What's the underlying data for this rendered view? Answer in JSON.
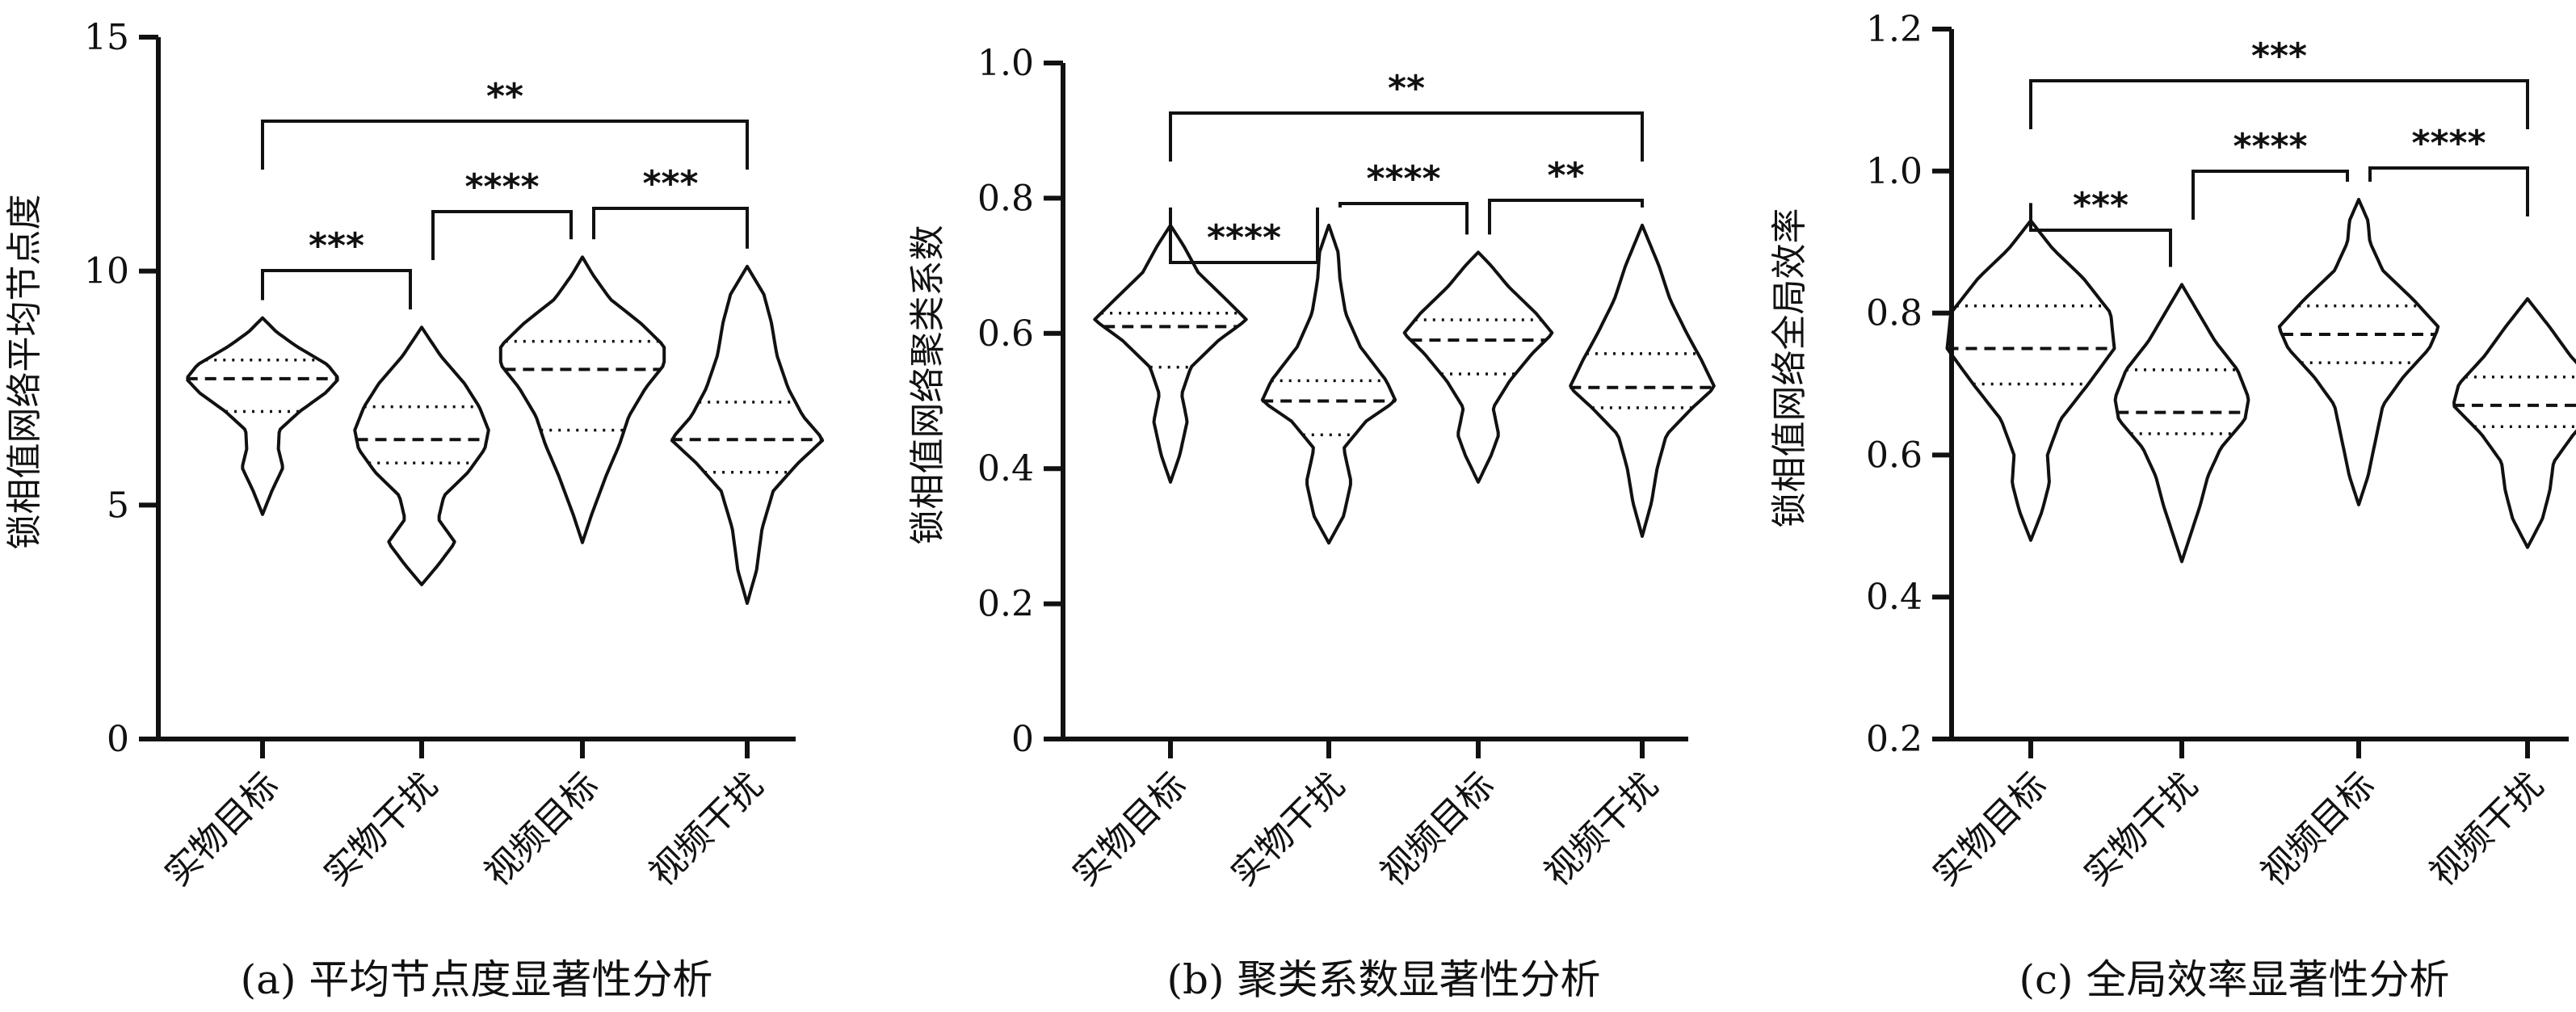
{
  "chart_data": [
    {
      "type": "violin",
      "caption": "(a) 平均节点度显著性分析",
      "ylabel": "锁相值网络平均节点度",
      "ylim": [
        0,
        15
      ],
      "yticks": [
        "0",
        "5",
        "10",
        "15"
      ],
      "categories": [
        "实物目标",
        "实物干扰",
        "视频目标",
        "视频干扰"
      ],
      "violins": [
        {
          "min": 4.8,
          "max": 9.0,
          "median": 7.7,
          "q1": 7.0,
          "q3": 8.1,
          "profile": [
            [
              4.8,
              0.0
            ],
            [
              5.3,
              0.1
            ],
            [
              5.8,
              0.22
            ],
            [
              6.2,
              0.17
            ],
            [
              6.6,
              0.18
            ],
            [
              7.0,
              0.4
            ],
            [
              7.4,
              0.68
            ],
            [
              7.7,
              0.82
            ],
            [
              8.0,
              0.7
            ],
            [
              8.4,
              0.36
            ],
            [
              8.7,
              0.15
            ],
            [
              9.0,
              0.0
            ]
          ]
        },
        {
          "min": 3.3,
          "max": 8.8,
          "median": 6.4,
          "q1": 5.9,
          "q3": 7.1,
          "profile": [
            [
              3.3,
              0.0
            ],
            [
              3.7,
              0.17
            ],
            [
              4.2,
              0.36
            ],
            [
              4.7,
              0.18
            ],
            [
              5.2,
              0.24
            ],
            [
              5.7,
              0.5
            ],
            [
              6.2,
              0.68
            ],
            [
              6.6,
              0.72
            ],
            [
              7.1,
              0.62
            ],
            [
              7.6,
              0.46
            ],
            [
              8.2,
              0.2
            ],
            [
              8.8,
              0.0
            ]
          ]
        },
        {
          "min": 4.2,
          "max": 10.3,
          "median": 7.9,
          "q1": 6.6,
          "q3": 8.5,
          "profile": [
            [
              4.2,
              0.0
            ],
            [
              4.8,
              0.1
            ],
            [
              5.6,
              0.25
            ],
            [
              6.3,
              0.4
            ],
            [
              6.9,
              0.5
            ],
            [
              7.5,
              0.68
            ],
            [
              8.0,
              0.88
            ],
            [
              8.4,
              0.88
            ],
            [
              8.9,
              0.62
            ],
            [
              9.4,
              0.3
            ],
            [
              9.9,
              0.12
            ],
            [
              10.3,
              0.0
            ]
          ]
        },
        {
          "min": 2.9,
          "max": 10.1,
          "median": 6.4,
          "q1": 5.7,
          "q3": 7.2,
          "profile": [
            [
              2.9,
              0.0
            ],
            [
              3.6,
              0.1
            ],
            [
              4.5,
              0.16
            ],
            [
              5.3,
              0.28
            ],
            [
              5.9,
              0.55
            ],
            [
              6.4,
              0.82
            ],
            [
              6.9,
              0.6
            ],
            [
              7.5,
              0.44
            ],
            [
              8.2,
              0.32
            ],
            [
              8.9,
              0.26
            ],
            [
              9.5,
              0.18
            ],
            [
              10.1,
              0.0
            ]
          ]
        }
      ],
      "brackets": [
        {
          "from": 0,
          "to": 1,
          "label": "***"
        },
        {
          "from": 1,
          "to": 2,
          "label": "****"
        },
        {
          "from": 2,
          "to": 3,
          "label": "***"
        },
        {
          "from": 0,
          "to": 3,
          "label": "**"
        }
      ]
    },
    {
      "type": "violin",
      "caption": "(b) 聚类系数显著性分析",
      "ylabel": "锁相值网络聚类系数",
      "ylim": [
        0,
        1.0
      ],
      "yticks": [
        "0",
        "0.2",
        "0.4",
        "0.6",
        "0.8",
        "1.0"
      ],
      "categories": [
        "实物目标",
        "实物干扰",
        "视频目标",
        "视频干扰"
      ],
      "violins": [
        {
          "min": 0.38,
          "max": 0.76,
          "median": 0.61,
          "q1": 0.55,
          "q3": 0.63,
          "profile": [
            [
              0.38,
              0.0
            ],
            [
              0.42,
              0.1
            ],
            [
              0.47,
              0.18
            ],
            [
              0.51,
              0.12
            ],
            [
              0.55,
              0.22
            ],
            [
              0.59,
              0.52
            ],
            [
              0.62,
              0.82
            ],
            [
              0.65,
              0.6
            ],
            [
              0.69,
              0.3
            ],
            [
              0.73,
              0.14
            ],
            [
              0.76,
              0.0
            ]
          ]
        },
        {
          "min": 0.29,
          "max": 0.76,
          "median": 0.5,
          "q1": 0.45,
          "q3": 0.53,
          "profile": [
            [
              0.29,
              0.0
            ],
            [
              0.33,
              0.16
            ],
            [
              0.38,
              0.24
            ],
            [
              0.43,
              0.16
            ],
            [
              0.47,
              0.4
            ],
            [
              0.5,
              0.72
            ],
            [
              0.53,
              0.62
            ],
            [
              0.58,
              0.34
            ],
            [
              0.63,
              0.18
            ],
            [
              0.68,
              0.12
            ],
            [
              0.72,
              0.1
            ],
            [
              0.76,
              0.0
            ]
          ]
        },
        {
          "min": 0.38,
          "max": 0.72,
          "median": 0.59,
          "q1": 0.54,
          "q3": 0.62,
          "profile": [
            [
              0.38,
              0.0
            ],
            [
              0.42,
              0.14
            ],
            [
              0.45,
              0.22
            ],
            [
              0.49,
              0.16
            ],
            [
              0.53,
              0.34
            ],
            [
              0.57,
              0.58
            ],
            [
              0.6,
              0.8
            ],
            [
              0.63,
              0.62
            ],
            [
              0.67,
              0.32
            ],
            [
              0.7,
              0.14
            ],
            [
              0.72,
              0.0
            ]
          ]
        },
        {
          "min": 0.3,
          "max": 0.76,
          "median": 0.52,
          "q1": 0.49,
          "q3": 0.57,
          "profile": [
            [
              0.3,
              0.0
            ],
            [
              0.35,
              0.1
            ],
            [
              0.4,
              0.16
            ],
            [
              0.45,
              0.26
            ],
            [
              0.49,
              0.54
            ],
            [
              0.52,
              0.78
            ],
            [
              0.56,
              0.64
            ],
            [
              0.6,
              0.48
            ],
            [
              0.65,
              0.3
            ],
            [
              0.7,
              0.18
            ],
            [
              0.76,
              0.0
            ]
          ]
        }
      ],
      "brackets": [
        {
          "from": 0,
          "to": 1,
          "label": "****"
        },
        {
          "from": 1,
          "to": 2,
          "label": "****"
        },
        {
          "from": 2,
          "to": 3,
          "label": "**"
        },
        {
          "from": 0,
          "to": 3,
          "label": "**"
        }
      ]
    },
    {
      "type": "violin",
      "caption": "(c) 全局效率显著性分析",
      "ylabel": "锁相值网络全局效率",
      "ylim": [
        0.2,
        1.2
      ],
      "yticks": [
        "0.2",
        "0.4",
        "0.6",
        "0.8",
        "1.0",
        "1.2"
      ],
      "categories": [
        "实物目标",
        "实物干扰",
        "视频目标",
        "视频干扰"
      ],
      "violins": [
        {
          "min": 0.48,
          "max": 0.93,
          "median": 0.75,
          "q1": 0.7,
          "q3": 0.81,
          "profile": [
            [
              0.48,
              0.0
            ],
            [
              0.52,
              0.12
            ],
            [
              0.56,
              0.2
            ],
            [
              0.6,
              0.18
            ],
            [
              0.65,
              0.32
            ],
            [
              0.7,
              0.62
            ],
            [
              0.75,
              0.9
            ],
            [
              0.8,
              0.86
            ],
            [
              0.85,
              0.56
            ],
            [
              0.89,
              0.24
            ],
            [
              0.93,
              0.0
            ]
          ]
        },
        {
          "min": 0.45,
          "max": 0.84,
          "median": 0.66,
          "q1": 0.63,
          "q3": 0.72,
          "profile": [
            [
              0.45,
              0.0
            ],
            [
              0.49,
              0.1
            ],
            [
              0.53,
              0.2
            ],
            [
              0.57,
              0.28
            ],
            [
              0.61,
              0.42
            ],
            [
              0.65,
              0.68
            ],
            [
              0.68,
              0.72
            ],
            [
              0.72,
              0.6
            ],
            [
              0.76,
              0.36
            ],
            [
              0.8,
              0.18
            ],
            [
              0.84,
              0.0
            ]
          ]
        },
        {
          "min": 0.53,
          "max": 0.96,
          "median": 0.77,
          "q1": 0.73,
          "q3": 0.81,
          "profile": [
            [
              0.53,
              0.0
            ],
            [
              0.57,
              0.1
            ],
            [
              0.62,
              0.18
            ],
            [
              0.67,
              0.26
            ],
            [
              0.71,
              0.48
            ],
            [
              0.75,
              0.76
            ],
            [
              0.78,
              0.86
            ],
            [
              0.82,
              0.58
            ],
            [
              0.86,
              0.26
            ],
            [
              0.9,
              0.12
            ],
            [
              0.93,
              0.1
            ],
            [
              0.96,
              0.0
            ]
          ]
        },
        {
          "min": 0.47,
          "max": 0.82,
          "median": 0.67,
          "q1": 0.64,
          "q3": 0.71,
          "profile": [
            [
              0.47,
              0.0
            ],
            [
              0.51,
              0.16
            ],
            [
              0.55,
              0.24
            ],
            [
              0.59,
              0.28
            ],
            [
              0.63,
              0.5
            ],
            [
              0.67,
              0.8
            ],
            [
              0.7,
              0.74
            ],
            [
              0.74,
              0.46
            ],
            [
              0.78,
              0.24
            ],
            [
              0.82,
              0.0
            ]
          ]
        }
      ],
      "brackets": [
        {
          "from": 0,
          "to": 1,
          "label": "***"
        },
        {
          "from": 1,
          "to": 2,
          "label": "****"
        },
        {
          "from": 2,
          "to": 3,
          "label": "****"
        },
        {
          "from": 0,
          "to": 3,
          "label": "***"
        }
      ]
    }
  ]
}
